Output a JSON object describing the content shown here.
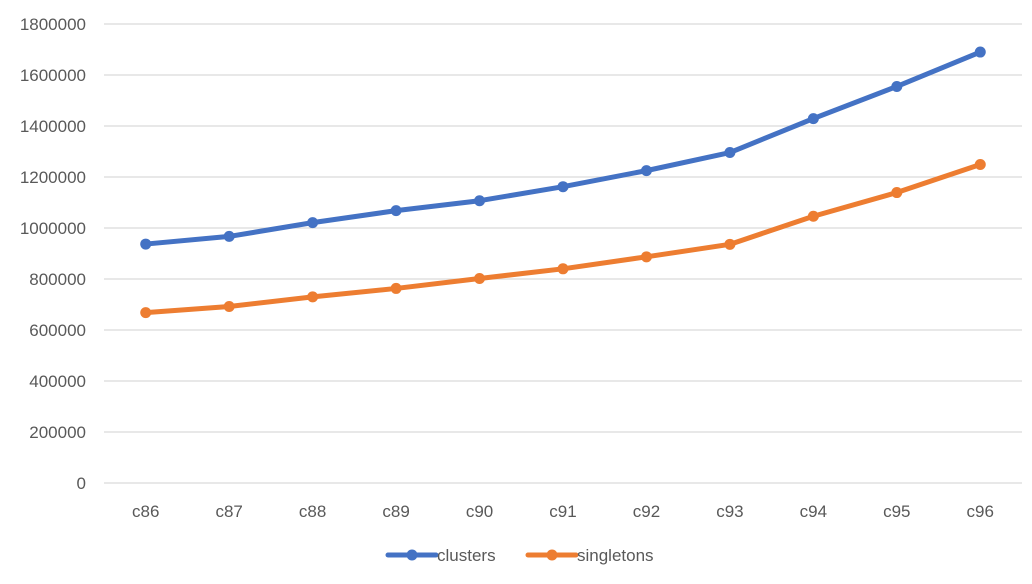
{
  "chart_data": {
    "type": "line",
    "title": "",
    "xlabel": "",
    "ylabel": "",
    "categories": [
      "c86",
      "c87",
      "c88",
      "c89",
      "c90",
      "c91",
      "c92",
      "c93",
      "c94",
      "c95",
      "c96"
    ],
    "ylim": [
      0,
      1800000
    ],
    "yticks": [
      0,
      200000,
      400000,
      600000,
      800000,
      1000000,
      1200000,
      1400000,
      1600000,
      1800000
    ],
    "ytick_labels": [
      "0",
      "200000",
      "400000",
      "600000",
      "800000",
      "1000000",
      "1200000",
      "1400000",
      "1600000",
      "1800000"
    ],
    "grid": "horizontal",
    "legend_position": "bottom",
    "series": [
      {
        "name": "clusters",
        "color": "#4472C4",
        "values": [
          937000,
          967000,
          1021000,
          1068000,
          1107000,
          1162000,
          1225000,
          1296000,
          1429000,
          1555000,
          1690000
        ]
      },
      {
        "name": "singletons",
        "color": "#ED7D31",
        "values": [
          668000,
          692000,
          730000,
          763000,
          802000,
          840000,
          887000,
          936000,
          1046000,
          1139000,
          1249000
        ]
      }
    ]
  }
}
